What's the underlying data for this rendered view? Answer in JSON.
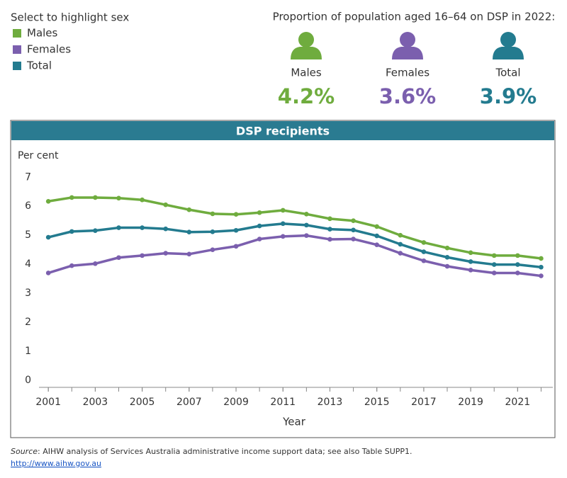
{
  "highlight_panel": {
    "title": "Select to highlight sex"
  },
  "summary": {
    "title": "Proportion of population aged 16–64 on DSP in 2022:",
    "items": [
      {
        "label": "Males",
        "value": 4.2,
        "value_label": "4.2%",
        "color": "#6fac3e"
      },
      {
        "label": "Females",
        "value": 3.6,
        "value_label": "3.6%",
        "color": "#7b5fae"
      },
      {
        "label": "Total",
        "value": 3.9,
        "value_label": "3.9%",
        "color": "#237b8f"
      }
    ]
  },
  "chart_data": {
    "type": "line",
    "title": "DSP recipients",
    "y_label": "Per cent",
    "x_label": "Year",
    "x": [
      2001,
      2002,
      2003,
      2004,
      2005,
      2006,
      2007,
      2008,
      2009,
      2010,
      2011,
      2012,
      2013,
      2014,
      2015,
      2016,
      2017,
      2018,
      2019,
      2020,
      2021,
      2022
    ],
    "series": [
      {
        "name": "Males",
        "color": "#6fac3e",
        "values": [
          6.17,
          6.3,
          6.3,
          6.28,
          6.22,
          6.05,
          5.88,
          5.74,
          5.72,
          5.78,
          5.86,
          5.73,
          5.57,
          5.5,
          5.3,
          5.0,
          4.75,
          4.56,
          4.4,
          4.3,
          4.3,
          4.2
        ]
      },
      {
        "name": "Females",
        "color": "#7b5fae",
        "values": [
          3.7,
          3.95,
          4.02,
          4.23,
          4.3,
          4.38,
          4.35,
          4.5,
          4.62,
          4.87,
          4.96,
          4.99,
          4.86,
          4.87,
          4.67,
          4.38,
          4.12,
          3.93,
          3.8,
          3.7,
          3.7,
          3.6
        ]
      },
      {
        "name": "Total",
        "color": "#237b8f",
        "values": [
          4.93,
          5.13,
          5.16,
          5.26,
          5.26,
          5.22,
          5.11,
          5.12,
          5.17,
          5.32,
          5.4,
          5.35,
          5.21,
          5.18,
          4.98,
          4.69,
          4.43,
          4.24,
          4.09,
          3.99,
          3.99,
          3.9
        ]
      }
    ],
    "xlim": [
      2000.3,
      2022.5
    ],
    "xticks": [
      2001,
      2003,
      2005,
      2007,
      2009,
      2011,
      2013,
      2015,
      2017,
      2019,
      2021
    ],
    "ylim": [
      0,
      7.3
    ],
    "yticks": [
      0,
      1,
      2,
      3,
      4,
      5,
      6,
      7
    ],
    "grid": false
  },
  "footer": {
    "source_label": "Source",
    "source_text": ": AIHW analysis of Services Australia administrative income support data; see also Table SUPP1.",
    "url": "http://www.aihw.gov.au"
  }
}
